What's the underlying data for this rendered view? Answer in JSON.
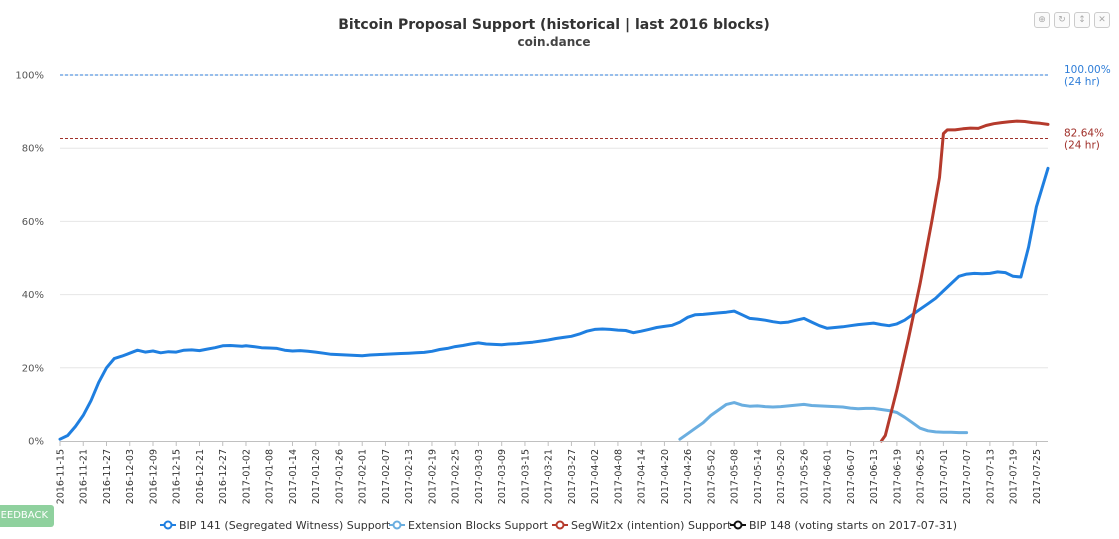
{
  "toolbar": {
    "zoom_in_icon": "magnifier-plus-icon",
    "reset_icon": "reset-zoom-icon",
    "hide_icon": "toggle-icon"
  },
  "feedback": {
    "label": "FEEDBACK"
  },
  "chart_data": {
    "type": "line",
    "title": "Bitcoin Proposal Support (historical | last 2016 blocks)",
    "subtitle": "coin.dance",
    "ylim": [
      0,
      100
    ],
    "yticks": [
      "0%",
      "20%",
      "40%",
      "60%",
      "80%",
      "100%"
    ],
    "grid": true,
    "legend_position": "bottom",
    "x_start": "2016-11-15",
    "x_end": "2017-07-28",
    "categories": [
      "2016-11-15",
      "2016-11-21",
      "2016-11-27",
      "2016-12-03",
      "2016-12-09",
      "2016-12-15",
      "2016-12-21",
      "2016-12-27",
      "2017-01-02",
      "2017-01-08",
      "2017-01-14",
      "2017-01-20",
      "2017-01-26",
      "2017-02-01",
      "2017-02-07",
      "2017-02-13",
      "2017-02-19",
      "2017-02-25",
      "2017-03-03",
      "2017-03-09",
      "2017-03-15",
      "2017-03-21",
      "2017-03-27",
      "2017-04-02",
      "2017-04-08",
      "2017-04-14",
      "2017-04-20",
      "2017-04-26",
      "2017-05-02",
      "2017-05-08",
      "2017-05-14",
      "2017-05-20",
      "2017-05-26",
      "2017-06-01",
      "2017-06-07",
      "2017-06-13",
      "2017-06-19",
      "2017-06-25",
      "2017-07-01",
      "2017-07-07",
      "2017-07-13",
      "2017-07-19",
      "2017-07-25"
    ],
    "reference_lines": [
      {
        "value": 100,
        "label_top": "100.00%",
        "label_bottom": "(24 hr)",
        "color": "#2f7ed8"
      },
      {
        "value": 82.64,
        "label_top": "82.64%",
        "label_bottom": "(24 hr)",
        "color": "#a0302a"
      }
    ],
    "series": [
      {
        "name": "BIP 141 (Segregated Witness) Support",
        "color": "#1f7fe0",
        "points": [
          [
            "2016-11-15",
            0.5
          ],
          [
            "2016-11-17",
            1.5
          ],
          [
            "2016-11-19",
            4
          ],
          [
            "2016-11-21",
            7
          ],
          [
            "2016-11-23",
            11
          ],
          [
            "2016-11-25",
            16
          ],
          [
            "2016-11-27",
            20
          ],
          [
            "2016-11-29",
            22.5
          ],
          [
            "2016-12-01",
            23.2
          ],
          [
            "2016-12-03",
            24
          ],
          [
            "2016-12-05",
            24.8
          ],
          [
            "2016-12-07",
            24.3
          ],
          [
            "2016-12-09",
            24.6
          ],
          [
            "2016-12-11",
            24.1
          ],
          [
            "2016-12-13",
            24.4
          ],
          [
            "2016-12-15",
            24.3
          ],
          [
            "2016-12-17",
            24.8
          ],
          [
            "2016-12-19",
            24.9
          ],
          [
            "2016-12-21",
            24.7
          ],
          [
            "2016-12-23",
            25.1
          ],
          [
            "2016-12-25",
            25.5
          ],
          [
            "2016-12-27",
            26
          ],
          [
            "2016-12-29",
            26.1
          ],
          [
            "2017-01-01",
            25.9
          ],
          [
            "2017-01-02",
            26
          ],
          [
            "2017-01-04",
            25.8
          ],
          [
            "2017-01-06",
            25.5
          ],
          [
            "2017-01-08",
            25.4
          ],
          [
            "2017-01-10",
            25.3
          ],
          [
            "2017-01-12",
            24.8
          ],
          [
            "2017-01-14",
            24.6
          ],
          [
            "2017-01-16",
            24.7
          ],
          [
            "2017-01-18",
            24.5
          ],
          [
            "2017-01-20",
            24.3
          ],
          [
            "2017-01-22",
            24
          ],
          [
            "2017-01-24",
            23.7
          ],
          [
            "2017-01-26",
            23.6
          ],
          [
            "2017-01-28",
            23.5
          ],
          [
            "2017-01-30",
            23.4
          ],
          [
            "2017-02-01",
            23.3
          ],
          [
            "2017-02-03",
            23.5
          ],
          [
            "2017-02-05",
            23.6
          ],
          [
            "2017-02-07",
            23.7
          ],
          [
            "2017-02-09",
            23.8
          ],
          [
            "2017-02-11",
            23.9
          ],
          [
            "2017-02-13",
            24
          ],
          [
            "2017-02-15",
            24.1
          ],
          [
            "2017-02-17",
            24.2
          ],
          [
            "2017-02-19",
            24.5
          ],
          [
            "2017-02-21",
            25
          ],
          [
            "2017-02-23",
            25.3
          ],
          [
            "2017-02-25",
            25.8
          ],
          [
            "2017-02-27",
            26.1
          ],
          [
            "2017-03-01",
            26.5
          ],
          [
            "2017-03-03",
            26.8
          ],
          [
            "2017-03-05",
            26.5
          ],
          [
            "2017-03-07",
            26.4
          ],
          [
            "2017-03-09",
            26.3
          ],
          [
            "2017-03-11",
            26.5
          ],
          [
            "2017-03-13",
            26.6
          ],
          [
            "2017-03-15",
            26.8
          ],
          [
            "2017-03-17",
            27
          ],
          [
            "2017-03-19",
            27.3
          ],
          [
            "2017-03-21",
            27.6
          ],
          [
            "2017-03-23",
            28
          ],
          [
            "2017-03-25",
            28.3
          ],
          [
            "2017-03-27",
            28.6
          ],
          [
            "2017-03-29",
            29.2
          ],
          [
            "2017-03-31",
            30
          ],
          [
            "2017-04-02",
            30.5
          ],
          [
            "2017-04-04",
            30.6
          ],
          [
            "2017-04-06",
            30.5
          ],
          [
            "2017-04-08",
            30.3
          ],
          [
            "2017-04-10",
            30.2
          ],
          [
            "2017-04-12",
            29.6
          ],
          [
            "2017-04-14",
            30
          ],
          [
            "2017-04-16",
            30.5
          ],
          [
            "2017-04-18",
            31
          ],
          [
            "2017-04-20",
            31.3
          ],
          [
            "2017-04-22",
            31.6
          ],
          [
            "2017-04-24",
            32.5
          ],
          [
            "2017-04-26",
            33.8
          ],
          [
            "2017-04-28",
            34.5
          ],
          [
            "2017-04-30",
            34.6
          ],
          [
            "2017-05-02",
            34.8
          ],
          [
            "2017-05-04",
            35
          ],
          [
            "2017-05-06",
            35.2
          ],
          [
            "2017-05-08",
            35.5
          ],
          [
            "2017-05-10",
            34.5
          ],
          [
            "2017-05-12",
            33.5
          ],
          [
            "2017-05-14",
            33.3
          ],
          [
            "2017-05-16",
            33
          ],
          [
            "2017-05-18",
            32.6
          ],
          [
            "2017-05-20",
            32.3
          ],
          [
            "2017-05-22",
            32.5
          ],
          [
            "2017-05-24",
            33
          ],
          [
            "2017-05-26",
            33.5
          ],
          [
            "2017-05-28",
            32.5
          ],
          [
            "2017-05-30",
            31.5
          ],
          [
            "2017-06-01",
            30.8
          ],
          [
            "2017-06-03",
            31
          ],
          [
            "2017-06-05",
            31.2
          ],
          [
            "2017-06-07",
            31.5
          ],
          [
            "2017-06-09",
            31.8
          ],
          [
            "2017-06-11",
            32
          ],
          [
            "2017-06-13",
            32.2
          ],
          [
            "2017-06-15",
            31.8
          ],
          [
            "2017-06-17",
            31.5
          ],
          [
            "2017-06-19",
            32
          ],
          [
            "2017-06-21",
            33
          ],
          [
            "2017-06-23",
            34.5
          ],
          [
            "2017-06-25",
            36
          ],
          [
            "2017-06-27",
            37.5
          ],
          [
            "2017-06-29",
            39
          ],
          [
            "2017-07-01",
            41
          ],
          [
            "2017-07-03",
            43
          ],
          [
            "2017-07-05",
            45
          ],
          [
            "2017-07-07",
            45.6
          ],
          [
            "2017-07-09",
            45.8
          ],
          [
            "2017-07-11",
            45.7
          ],
          [
            "2017-07-13",
            45.8
          ],
          [
            "2017-07-15",
            46.2
          ],
          [
            "2017-07-17",
            46
          ],
          [
            "2017-07-19",
            45
          ],
          [
            "2017-07-21",
            44.8
          ],
          [
            "2017-07-23",
            53
          ],
          [
            "2017-07-25",
            64
          ],
          [
            "2017-07-28",
            74.5
          ]
        ]
      },
      {
        "name": "Extension Blocks Support",
        "color": "#6aaee0",
        "points": [
          [
            "2017-04-24",
            0.5
          ],
          [
            "2017-04-26",
            2
          ],
          [
            "2017-04-28",
            3.5
          ],
          [
            "2017-04-30",
            5
          ],
          [
            "2017-05-02",
            7
          ],
          [
            "2017-05-04",
            8.5
          ],
          [
            "2017-05-06",
            10
          ],
          [
            "2017-05-08",
            10.5
          ],
          [
            "2017-05-10",
            9.8
          ],
          [
            "2017-05-12",
            9.5
          ],
          [
            "2017-05-14",
            9.6
          ],
          [
            "2017-05-16",
            9.4
          ],
          [
            "2017-05-18",
            9.3
          ],
          [
            "2017-05-20",
            9.4
          ],
          [
            "2017-05-22",
            9.6
          ],
          [
            "2017-05-24",
            9.8
          ],
          [
            "2017-05-26",
            10
          ],
          [
            "2017-05-28",
            9.7
          ],
          [
            "2017-05-30",
            9.6
          ],
          [
            "2017-06-01",
            9.5
          ],
          [
            "2017-06-03",
            9.4
          ],
          [
            "2017-06-05",
            9.3
          ],
          [
            "2017-06-07",
            9
          ],
          [
            "2017-06-09",
            8.8
          ],
          [
            "2017-06-11",
            8.9
          ],
          [
            "2017-06-13",
            8.9
          ],
          [
            "2017-06-15",
            8.6
          ],
          [
            "2017-06-17",
            8.3
          ],
          [
            "2017-06-19",
            7.8
          ],
          [
            "2017-06-21",
            6.5
          ],
          [
            "2017-06-23",
            5
          ],
          [
            "2017-06-25",
            3.5
          ],
          [
            "2017-06-27",
            2.8
          ],
          [
            "2017-06-29",
            2.5
          ],
          [
            "2017-07-01",
            2.4
          ],
          [
            "2017-07-03",
            2.4
          ],
          [
            "2017-07-05",
            2.3
          ],
          [
            "2017-07-07",
            2.3
          ]
        ]
      },
      {
        "name": "SegWit2x (intention) Support",
        "color": "#b53a2c",
        "points": [
          [
            "2017-06-15",
            0
          ],
          [
            "2017-06-16",
            1.5
          ],
          [
            "2017-06-19",
            14
          ],
          [
            "2017-06-22",
            28
          ],
          [
            "2017-06-25",
            43
          ],
          [
            "2017-06-28",
            60
          ],
          [
            "2017-06-30",
            72
          ],
          [
            "2017-07-01",
            84
          ],
          [
            "2017-07-02",
            85
          ],
          [
            "2017-07-04",
            85
          ],
          [
            "2017-07-06",
            85.3
          ],
          [
            "2017-07-08",
            85.5
          ],
          [
            "2017-07-10",
            85.4
          ],
          [
            "2017-07-12",
            86.2
          ],
          [
            "2017-07-14",
            86.7
          ],
          [
            "2017-07-16",
            87
          ],
          [
            "2017-07-18",
            87.2
          ],
          [
            "2017-07-20",
            87.4
          ],
          [
            "2017-07-22",
            87.3
          ],
          [
            "2017-07-24",
            87
          ],
          [
            "2017-07-26",
            86.8
          ],
          [
            "2017-07-28",
            86.5
          ]
        ]
      },
      {
        "name": "BIP 148 (voting starts on 2017-07-31)",
        "color": "#111111",
        "points": []
      }
    ]
  }
}
